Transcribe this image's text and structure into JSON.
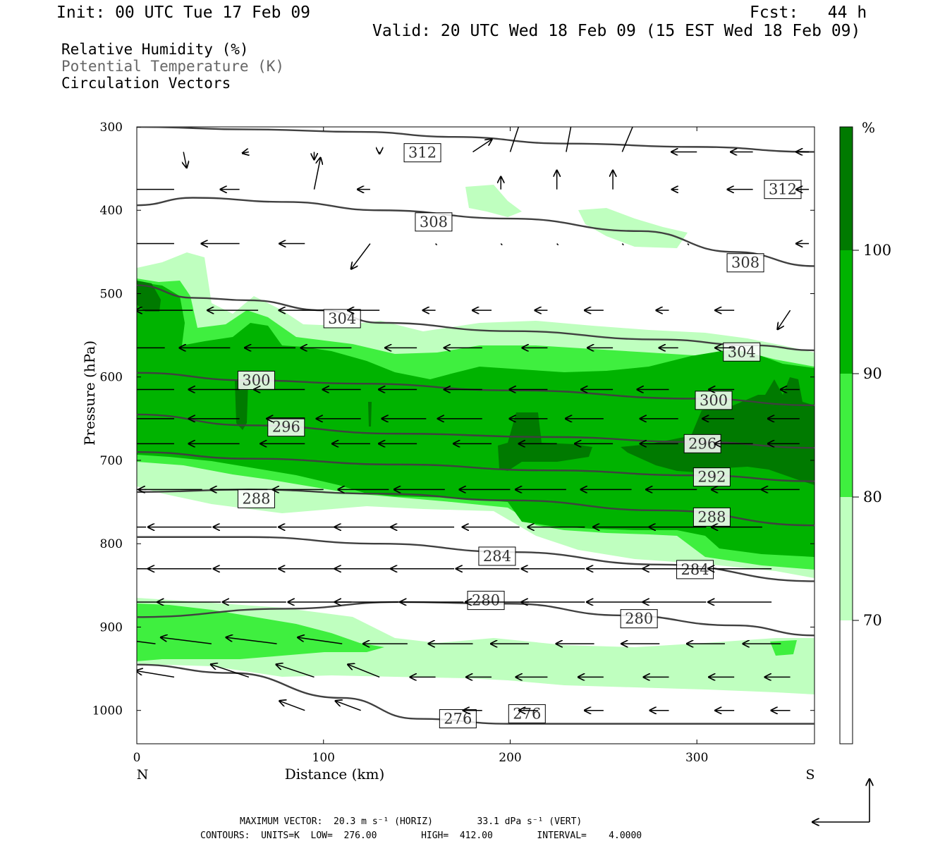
{
  "header": {
    "init": "Init: 00 UTC Tue 17 Feb 09",
    "fcst": "Fcst:   44 h",
    "valid": "Valid: 20 UTC Wed 18 Feb 09 (15 EST Wed 18 Feb 09)"
  },
  "fields": {
    "rh": "Relative Humidity (%)",
    "theta": "Potential Temperature (K)",
    "vectors": "Circulation Vectors"
  },
  "footer": {
    "max_vector": "MAXIMUM VECTOR:  20.3 m s⁻¹ (HORIZ)        33.1 dPa s⁻¹ (VERT)",
    "contours": "CONTOURS:  UNITS=K  LOW=  276.00        HIGH=  412.00        INTERVAL=    4.0000"
  },
  "colors": {
    "c70": "#bfffbf",
    "c80": "#3fef3f",
    "c90": "#00b300",
    "c100": "#007a00",
    "contour": "#404040",
    "vector": "#000000"
  },
  "chart_data": {
    "type": "heatmap",
    "title": "",
    "xlabel": "Distance (km)",
    "ylabel": "Pressure (hPa)",
    "xlim": [
      0,
      363
    ],
    "ylim": [
      1040,
      300
    ],
    "x_ticks": [
      0,
      100,
      200,
      300
    ],
    "y_ticks": [
      300,
      400,
      500,
      600,
      700,
      800,
      900,
      1000
    ],
    "x_end_labels": [
      "N",
      "S"
    ],
    "colorbar": {
      "unit": "%",
      "levels": [
        70,
        80,
        90,
        100
      ],
      "shade_colors": [
        "#ffffff",
        "#bfffbf",
        "#3fef3f",
        "#00b300",
        "#007a00"
      ]
    },
    "contour_lines": [
      {
        "level": "312",
        "points": [
          [
            0,
            300
          ],
          [
            60,
            303
          ],
          [
            120,
            306
          ],
          [
            170,
            312
          ],
          [
            230,
            320
          ],
          [
            300,
            324
          ],
          [
            363,
            330
          ]
        ],
        "labels": [
          [
            153,
            331
          ],
          [
            346,
            375
          ]
        ]
      },
      {
        "level": "308",
        "points": [
          [
            0,
            394
          ],
          [
            30,
            385
          ],
          [
            80,
            390
          ],
          [
            130,
            400
          ],
          [
            200,
            410
          ],
          [
            270,
            425
          ],
          [
            320,
            450
          ],
          [
            363,
            467
          ]
        ],
        "labels": [
          [
            159,
            414
          ],
          [
            326,
            463
          ]
        ]
      },
      {
        "level": "304",
        "points": [
          [
            0,
            490
          ],
          [
            30,
            505
          ],
          [
            60,
            508
          ],
          [
            100,
            520
          ],
          [
            130,
            535
          ],
          [
            200,
            545
          ],
          [
            280,
            555
          ],
          [
            330,
            562
          ],
          [
            363,
            568
          ]
        ],
        "labels": [
          [
            110,
            530
          ],
          [
            324,
            570
          ]
        ]
      },
      {
        "level": "300",
        "points": [
          [
            0,
            595
          ],
          [
            60,
            604
          ],
          [
            120,
            608
          ],
          [
            200,
            616
          ],
          [
            300,
            626
          ],
          [
            363,
            634
          ]
        ],
        "labels": [
          [
            64,
            604
          ],
          [
            309,
            628
          ]
        ]
      },
      {
        "level": "296",
        "points": [
          [
            0,
            645
          ],
          [
            60,
            658
          ],
          [
            140,
            668
          ],
          [
            220,
            672
          ],
          [
            300,
            678
          ],
          [
            363,
            685
          ]
        ],
        "labels": [
          [
            80,
            660
          ],
          [
            303,
            680
          ]
        ]
      },
      {
        "level": "292",
        "points": [
          [
            0,
            690
          ],
          [
            60,
            698
          ],
          [
            140,
            705
          ],
          [
            220,
            712
          ],
          [
            300,
            718
          ],
          [
            363,
            725
          ]
        ],
        "labels": [
          [
            308,
            720
          ]
        ]
      },
      {
        "level": "288",
        "points": [
          [
            0,
            738
          ],
          [
            60,
            735
          ],
          [
            130,
            740
          ],
          [
            200,
            748
          ],
          [
            280,
            760
          ],
          [
            363,
            778
          ]
        ],
        "labels": [
          [
            64,
            746
          ],
          [
            308,
            768
          ]
        ]
      },
      {
        "level": "284",
        "points": [
          [
            0,
            792
          ],
          [
            60,
            792
          ],
          [
            130,
            800
          ],
          [
            200,
            810
          ],
          [
            280,
            825
          ],
          [
            363,
            845
          ]
        ],
        "labels": [
          [
            193,
            815
          ],
          [
            299,
            831
          ]
        ]
      },
      {
        "level": "280",
        "points": [
          [
            0,
            888
          ],
          [
            80,
            878
          ],
          [
            140,
            870
          ],
          [
            200,
            872
          ],
          [
            260,
            886
          ],
          [
            320,
            898
          ],
          [
            363,
            910
          ]
        ],
        "labels": [
          [
            187,
            868
          ],
          [
            269,
            890
          ]
        ]
      },
      {
        "level": "276",
        "points": [
          [
            0,
            945
          ],
          [
            50,
            955
          ],
          [
            110,
            985
          ],
          [
            150,
            1010
          ],
          [
            200,
            1016
          ],
          [
            363,
            1016
          ]
        ],
        "labels": [
          [
            172,
            1010
          ],
          [
            209,
            1004
          ]
        ]
      }
    ]
  }
}
